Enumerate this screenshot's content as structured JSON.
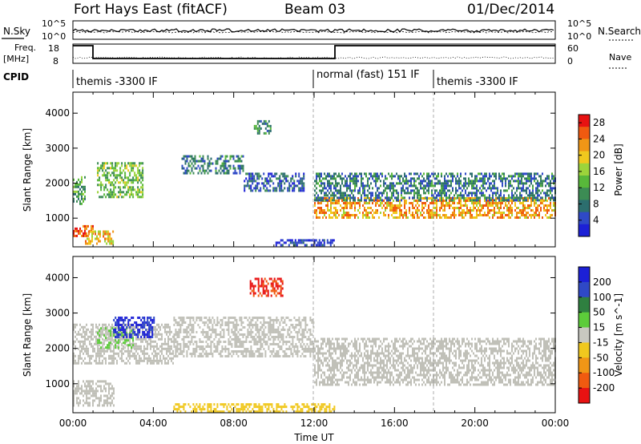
{
  "header": {
    "station": "Fort Hays East (fitACF)",
    "beam": "Beam 03",
    "date": "01/Dec/2014"
  },
  "top_panels": {
    "noise_label": "N.Sky",
    "noise_ticks": [
      "10^5",
      "10^0"
    ],
    "noise_right_label": "N.Search",
    "noise_right_ticks": [
      "10^5",
      "10^0"
    ],
    "freq_label_1": "Freq.",
    "freq_label_2": "[MHz]",
    "freq_ticks": [
      "18",
      "8"
    ],
    "nave_label": "Nave",
    "nave_ticks": [
      "60",
      "0"
    ],
    "cpid_label": "CPID",
    "cpid_segments": [
      {
        "label": "themis -3300 IF",
        "start_hour": 0
      },
      {
        "label": "normal (fast) 151 IF",
        "start_hour": 12
      },
      {
        "label": "themis -3300 IF",
        "start_hour": 18
      }
    ]
  },
  "colors": {
    "power_scale": [
      "#1c20d6",
      "#2f49c6",
      "#2c6e6e",
      "#3c8c54",
      "#58b83a",
      "#9cd43b",
      "#f0c81e",
      "#f09616",
      "#f05a10",
      "#e81212"
    ],
    "velocity_scale": [
      "#1c20d6",
      "#2f49c6",
      "#2f8040",
      "#5ccc3a",
      "#c8c8c0",
      "#f0c81e",
      "#f09616",
      "#f05a10",
      "#e81212"
    ],
    "ground_scatter": "#c0c0b8"
  },
  "chart_data": [
    {
      "type": "heatmap",
      "panel": "power",
      "ylabel": "Slant Range [km]",
      "ylim": [
        180,
        4600
      ],
      "xlim": [
        0,
        24
      ],
      "yticks": [
        1000,
        2000,
        3000,
        4000
      ],
      "colorbar": {
        "label": "Power [dB]",
        "ticks": [
          4,
          8,
          12,
          16,
          20,
          24,
          28
        ],
        "range": [
          0,
          30
        ]
      },
      "echo_bands": [
        {
          "t_start": 0.0,
          "t_end": 0.6,
          "r_low": 1400,
          "r_high": 2200,
          "level": 12
        },
        {
          "t_start": 0.0,
          "t_end": 1.0,
          "r_low": 500,
          "r_high": 800,
          "level": 26
        },
        {
          "t_start": 0.6,
          "t_end": 2.0,
          "r_low": 300,
          "r_high": 650,
          "level": 20
        },
        {
          "t_start": 1.2,
          "t_end": 3.5,
          "r_low": 1600,
          "r_high": 2600,
          "level": 14
        },
        {
          "t_start": 5.4,
          "t_end": 8.5,
          "r_low": 2300,
          "r_high": 2800,
          "level": 8
        },
        {
          "t_start": 8.5,
          "t_end": 11.5,
          "r_low": 1800,
          "r_high": 2300,
          "level": 6
        },
        {
          "t_start": 9.0,
          "t_end": 9.8,
          "r_low": 3400,
          "r_high": 3800,
          "level": 10
        },
        {
          "t_start": 12.0,
          "t_end": 24.0,
          "r_low": 1000,
          "r_high": 1600,
          "level": 22
        },
        {
          "t_start": 12.0,
          "t_end": 24.0,
          "r_low": 1500,
          "r_high": 2300,
          "level": 8
        },
        {
          "t_start": 10.0,
          "t_end": 13.0,
          "r_low": 200,
          "r_high": 400,
          "level": 4
        }
      ]
    },
    {
      "type": "heatmap",
      "panel": "velocity",
      "ylabel": "Slant Range [km]",
      "xlabel": "Time UT",
      "ylim": [
        180,
        4600
      ],
      "xlim": [
        0,
        24
      ],
      "yticks": [
        1000,
        2000,
        3000,
        4000
      ],
      "xticks": [
        "00:00",
        "04:00",
        "08:00",
        "12:00",
        "16:00",
        "20:00",
        "00:00"
      ],
      "colorbar": {
        "label": "Velocity [m s^-1]",
        "ticks": [
          200,
          100,
          50,
          15,
          -15,
          -50,
          -100,
          -200
        ],
        "range": [
          -250,
          250
        ]
      },
      "echo_bands": [
        {
          "t_start": 0.0,
          "t_end": 5.0,
          "r_low": 1600,
          "r_high": 2700,
          "level": 0
        },
        {
          "t_start": 1.2,
          "t_end": 3.0,
          "r_low": 2000,
          "r_high": 2600,
          "level": 30
        },
        {
          "t_start": 2.0,
          "t_end": 4.0,
          "r_low": 2300,
          "r_high": 2900,
          "level": 200
        },
        {
          "t_start": 0.0,
          "t_end": 2.0,
          "r_low": 400,
          "r_high": 1100,
          "level": 0
        },
        {
          "t_start": 5.0,
          "t_end": 12.0,
          "r_low": 1800,
          "r_high": 2900,
          "level": 0
        },
        {
          "t_start": 8.8,
          "t_end": 10.4,
          "r_low": 3500,
          "r_high": 4000,
          "level": -200
        },
        {
          "t_start": 12.0,
          "t_end": 24.0,
          "r_low": 1000,
          "r_high": 2300,
          "level": 0
        },
        {
          "t_start": 5.0,
          "t_end": 13.0,
          "r_low": 200,
          "r_high": 450,
          "level": -50
        }
      ]
    }
  ]
}
